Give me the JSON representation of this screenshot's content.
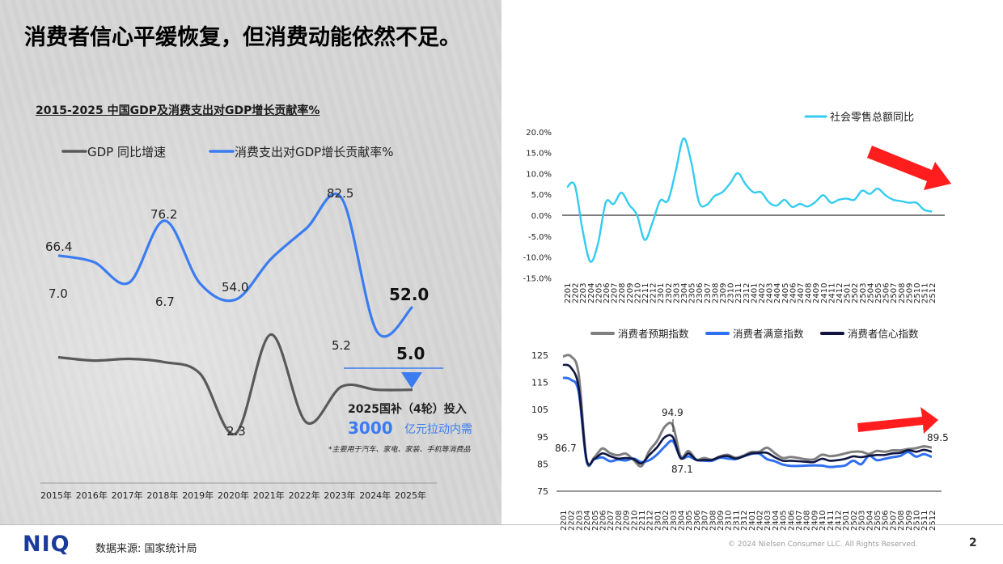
{
  "title": "消费者信心平缓恢复，但消费动能依然不足。",
  "footer": {
    "logo": "NIQ",
    "source": "数据来源: 国家统计局",
    "copyright": "© 2024 Nielsen Consumer LLC. All Rights Reserved.",
    "page": "2"
  },
  "left_annotations": {
    "gdp2025": "52.0",
    "c2025": "5.0",
    "subsidy_title": "2025国补（4轮）投入",
    "subsidy_amount": "3000",
    "subsidy_amount_suffix": "亿元拉动内需",
    "subsidy_note": "*主要用于汽车、家电、家装、手机等消费品"
  },
  "chart_data": [
    {
      "type": "line",
      "title": "2015-2025 中国GDP及消费支出对GDP增长贡献率%",
      "categories": [
        "2015年",
        "2016年",
        "2017年",
        "2018年",
        "2019年",
        "2020年",
        "2021年",
        "2022年",
        "2023年",
        "2024年",
        "2025年"
      ],
      "series": [
        {
          "name": "GDP 同比增速",
          "color": "#595959",
          "values": [
            7.0,
            6.8,
            6.9,
            6.7,
            6.0,
            2.3,
            8.4,
            3.0,
            5.2,
            5.0,
            5.0
          ]
        },
        {
          "name": "消费支出对GDP增长贡献率%",
          "color": "#3b7cf0",
          "values": [
            66.4,
            64.6,
            58.8,
            76.2,
            58.6,
            54.0,
            65.4,
            74.0,
            82.5,
            45.0,
            52.0
          ]
        }
      ],
      "data_labels": [
        {
          "series": 1,
          "index": 0,
          "text": "66.4"
        },
        {
          "series": 0,
          "index": 0,
          "text": "7.0"
        },
        {
          "series": 1,
          "index": 3,
          "text": "76.2"
        },
        {
          "series": 0,
          "index": 3,
          "text": "6.7"
        },
        {
          "series": 1,
          "index": 5,
          "text": "54.0"
        },
        {
          "series": 0,
          "index": 5,
          "text": "2.3"
        },
        {
          "series": 1,
          "index": 8,
          "text": "82.5"
        },
        {
          "series": 0,
          "index": 8,
          "text": "5.2"
        }
      ],
      "legend": "top"
    },
    {
      "type": "line",
      "series": [
        {
          "name": "社会零售总额同比",
          "color": "#33ccf0",
          "values": [
            6.7,
            7.2,
            -3.5,
            -11.1,
            -6.7,
            3.1,
            2.7,
            5.4,
            2.5,
            0.1,
            -5.9,
            -1.8,
            3.5,
            3.5,
            10.6,
            18.4,
            12.7,
            3.1,
            2.5,
            4.6,
            5.5,
            7.6,
            10.1,
            7.4,
            5.5,
            5.5,
            3.1,
            2.3,
            3.7,
            2.0,
            2.7,
            2.1,
            3.2,
            4.8,
            3.0,
            3.7,
            4.0,
            3.7,
            5.9,
            5.1,
            6.4,
            4.8,
            3.7,
            3.4,
            3.0,
            3.0,
            1.3,
            0.9
          ]
        }
      ],
      "categories": [
        "2201",
        "2202",
        "2203",
        "2204",
        "2205",
        "2206",
        "2207",
        "2208",
        "2209",
        "2210",
        "2211",
        "2212",
        "2301",
        "2302",
        "2303",
        "2304",
        "2305",
        "2306",
        "2307",
        "2308",
        "2309",
        "2310",
        "2311",
        "2312",
        "2401",
        "2402",
        "2403",
        "2404",
        "2405",
        "2406",
        "2407",
        "2408",
        "2409",
        "2410",
        "2411",
        "2412",
        "2501",
        "2502",
        "2503",
        "2504",
        "2505",
        "2506",
        "2507",
        "2508",
        "2509",
        "2510",
        "2511",
        "2512"
      ],
      "ylim": [
        -15,
        20
      ],
      "yticks": [
        "20.0%",
        "15.0%",
        "10.0%",
        "5.0%",
        "0.0%",
        "-5.0%",
        "-10.0%",
        "-15.0%"
      ],
      "legend": "top-right"
    },
    {
      "type": "line",
      "series": [
        {
          "name": "消费者预期指数",
          "color": "#7f7f7f",
          "values": [
            124.5,
            124.6,
            118.0,
            86.4,
            87.5,
            90.7,
            89.0,
            88.2,
            88.8,
            86.5,
            84.2,
            89.8,
            93.5,
            98.8,
            99.2,
            87.8,
            89.8,
            86.6,
            87.2,
            86.6,
            87.8,
            88.4,
            87.3,
            88.1,
            89.4,
            89.5,
            91.0,
            89.0,
            87.2,
            87.6,
            87.2,
            86.7,
            86.7,
            88.4,
            87.9,
            88.2,
            88.9,
            89.5,
            89.5,
            88.7,
            89.8,
            89.5,
            90.0,
            90.0,
            90.5,
            90.8,
            91.5,
            91.0
          ]
        },
        {
          "name": "消费者满意指数",
          "color": "#2f6ff2",
          "values": [
            116.7,
            116.0,
            111.5,
            86.3,
            86.8,
            87.4,
            86.0,
            86.6,
            86.3,
            87.0,
            85.7,
            86.4,
            88.5,
            91.5,
            93.4,
            87.3,
            87.8,
            86.5,
            86.2,
            86.2,
            87.3,
            87.0,
            86.8,
            87.8,
            88.7,
            88.8,
            86.8,
            86.0,
            84.8,
            84.3,
            84.3,
            84.4,
            84.5,
            84.4,
            83.9,
            84.1,
            84.5,
            86.2,
            84.9,
            88.0,
            86.4,
            86.9,
            87.5,
            88.0,
            89.4,
            87.7,
            88.6,
            87.6
          ]
        },
        {
          "name": "消费者信心指数",
          "color": "#0f1540",
          "values": [
            121.5,
            120.5,
            113.2,
            86.7,
            86.9,
            88.9,
            87.9,
            87.0,
            87.2,
            86.8,
            85.2,
            88.3,
            91.2,
            94.9,
            94.9,
            87.1,
            88.9,
            86.5,
            86.5,
            86.5,
            87.6,
            87.9,
            87.0,
            87.8,
            88.9,
            89.1,
            89.1,
            87.5,
            86.2,
            86.2,
            86.0,
            85.8,
            85.7,
            86.9,
            86.2,
            86.4,
            86.9,
            87.8,
            87.5,
            88.0,
            88.3,
            88.3,
            88.9,
            89.1,
            90.1,
            89.5,
            90.2,
            89.5
          ]
        }
      ],
      "categories": [
        "2201",
        "2202",
        "2203",
        "2204",
        "2205",
        "2206",
        "2207",
        "2208",
        "2209",
        "2210",
        "2211",
        "2212",
        "2301",
        "2302",
        "2303",
        "2304",
        "2305",
        "2306",
        "2307",
        "2308",
        "2309",
        "2310",
        "2311",
        "2312",
        "2401",
        "2402",
        "2403",
        "2404",
        "2405",
        "2406",
        "2407",
        "2408",
        "2409",
        "2410",
        "2411",
        "2412",
        "2501",
        "2502",
        "2503",
        "2504",
        "2505",
        "2506",
        "2507",
        "2508",
        "2509",
        "2510",
        "2511",
        "2512"
      ],
      "ylim": [
        75,
        125
      ],
      "yticks": [
        "125",
        "115",
        "105",
        "95",
        "85",
        "75"
      ],
      "data_labels": [
        {
          "series": 2,
          "index": 3,
          "text": "86.7"
        },
        {
          "series": 2,
          "index": 13,
          "text": "94.9"
        },
        {
          "series": 2,
          "index": 15,
          "text": "87.1"
        },
        {
          "series": 2,
          "index": 47,
          "text": "89.5"
        }
      ],
      "legend": "top"
    }
  ],
  "colors": {
    "arrow": "#ff1d1d",
    "left_bg": "#d6d6d6",
    "accent": "#3b7cf0"
  }
}
